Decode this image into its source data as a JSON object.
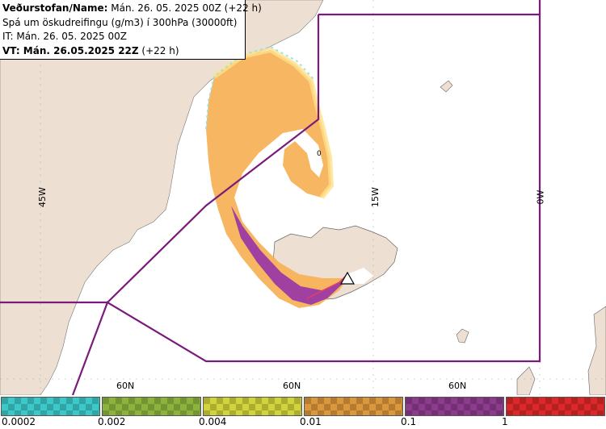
{
  "header": {
    "line1_bold": "Veðurstofan/Name:",
    "line1_rest": " Mán. 26. 05. 2025 00Z (+22 h)",
    "line2": "Spá um öskudreifingu (g/m3) í 300hPa (30000ft)",
    "line3": "IT: Mán. 26. 05. 2025 00Z",
    "line4_bold": "VT: Mán. 26.05.2025 22Z",
    "line4_rest": " (+22 h)"
  },
  "grid_labels": {
    "lon_45w": "45W",
    "lon_15w": "15W",
    "lon_0w": "0W",
    "lat_60n_a": "60N",
    "lat_60n_b": "60N",
    "lat_60n_c": "60N",
    "plume_marker": "0"
  },
  "legend": {
    "ticks": [
      "0.0002",
      "0.002",
      "0.004",
      "0.01",
      "0.1",
      "1"
    ],
    "colors": [
      "#3cc8c8",
      "#8cb43c",
      "#d2d23c",
      "#dc963c",
      "#8c3c8c",
      "#dc2828"
    ]
  },
  "colors": {
    "land": "#eedfd3",
    "sea": "#ffffff",
    "boundary": "#7a1a7a",
    "ash_low": "#f7b25a",
    "ash_mid": "#ffd98a",
    "ash_high": "#a040a0"
  }
}
